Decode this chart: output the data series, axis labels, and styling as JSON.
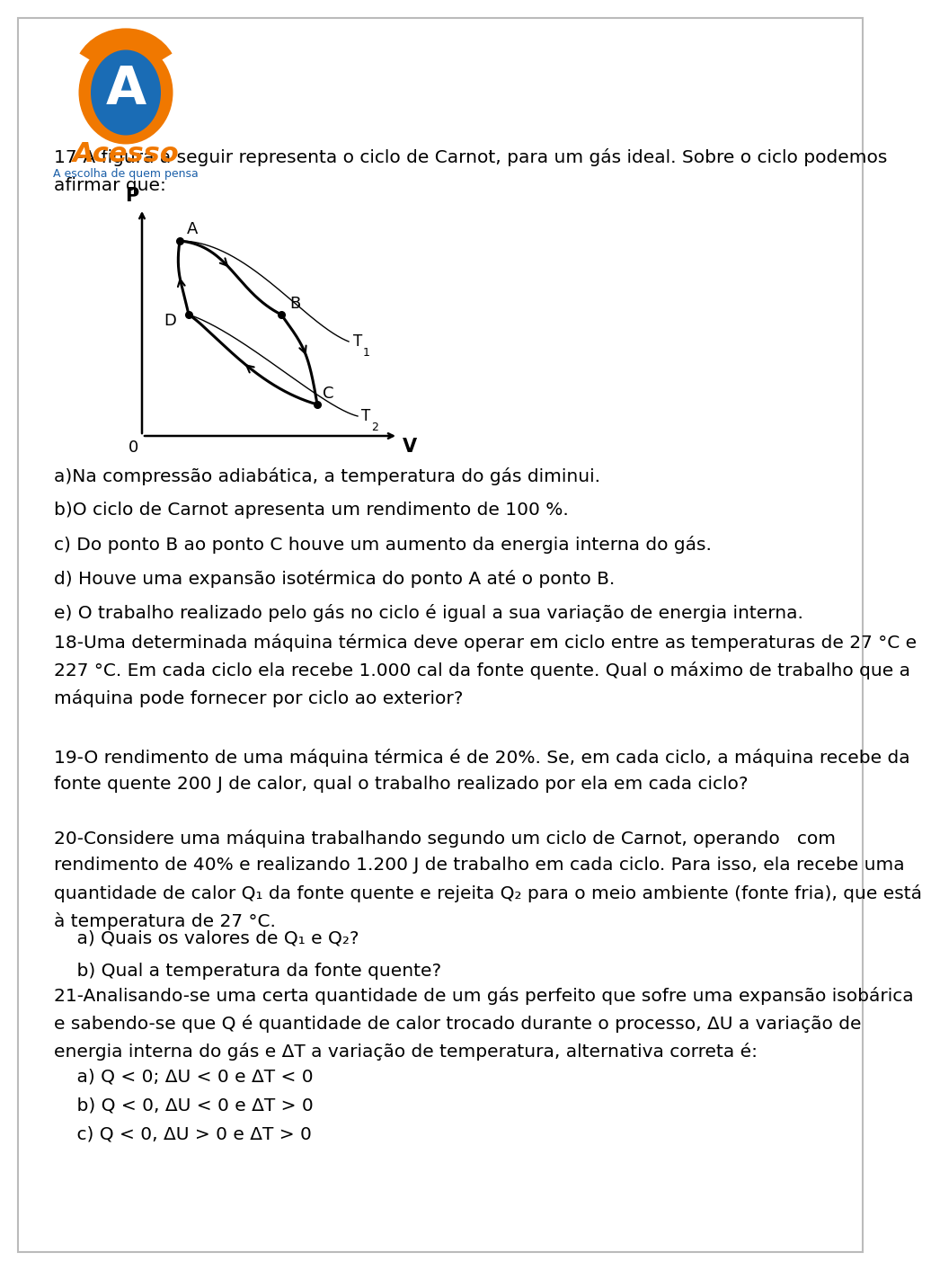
{
  "bg_color": "#ffffff",
  "border_color": "#bbbbbb",
  "text_color": "#000000",
  "blue_text": "#1a5fa8",
  "orange_color": "#f07800",
  "question17_text": "17-A figura a seguir representa o ciclo de Carnot, para um gás ideal. Sobre o ciclo podemos\nafirmar que:",
  "option_a": "a)Na compressão adiabática, a temperatura do gás diminui.",
  "option_b": "b)O ciclo de Carnot apresenta um rendimento de 100 %.",
  "option_c": "c) Do ponto B ao ponto C houve um aumento da energia interna do gás.",
  "option_d": "d) Houve uma expansão isotérmica do ponto A até o ponto B.",
  "option_e": "e) O trabalho realizado pelo gás no ciclo é igual a sua variação de energia interna.",
  "question18_text": "18-Uma determinada máquina térmica deve operar em ciclo entre as temperaturas de 27 °C e\n227 °C. Em cada ciclo ela recebe 1.000 cal da fonte quente. Qual o máximo de trabalho que a\nmáquina pode fornecer por ciclo ao exterior?",
  "question19_text": "19-O rendimento de uma máquina térmica é de 20%. Se, em cada ciclo, a máquina recebe da\nfonte quente 200 J de calor, qual o trabalho realizado por ela em cada ciclo?",
  "question20_text": "20-Considere uma máquina trabalhando segundo um ciclo de Carnot, operando   com\nrendimento de 40% e realizando 1.200 J de trabalho em cada ciclo. Para isso, ela recebe uma\nquantidade de calor Q₁ da fonte quente e rejeita Q₂ para o meio ambiente (fonte fria), que está\nà temperatura de 27 °C.",
  "question20a": "    a) Quais os valores de Q₁ e Q₂?",
  "question20b": "    b) Qual a temperatura da fonte quente?",
  "question21_text": "21-Analisando-se uma certa quantidade de um gás perfeito que sofre uma expansão isobárica\ne sabendo-se que Q é quantidade de calor trocado durante o processo, ΔU a variação de\nenergia interna do gás e ΔT a variação de temperatura, alternativa correta é:",
  "question21a": "    a) Q < 0; ΔU < 0 e ΔT < 0",
  "question21b": "    b) Q < 0, ΔU < 0 e ΔT > 0",
  "question21c": "    c) Q < 0, ΔU > 0 e ΔT > 0",
  "font_size_main": 14.5,
  "font_size_small": 9.5
}
